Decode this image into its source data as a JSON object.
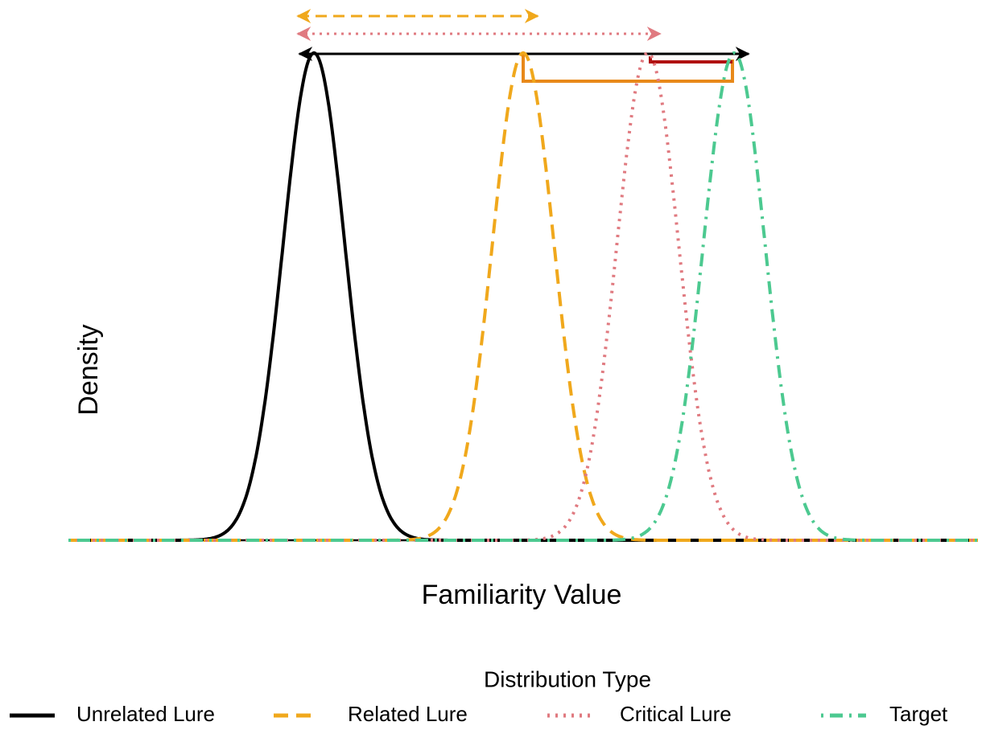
{
  "chart_data": {
    "type": "density",
    "x_label": "Familiarity Value",
    "y_label": "Density",
    "legend_title": "Distribution Type",
    "legend_position": "bottom",
    "xlim": [
      0,
      100
    ],
    "ylim": [
      0,
      0.1175
    ],
    "series": [
      {
        "name": "Unrelated Lure",
        "color": "#000000",
        "linetype": "solid",
        "mean": 27.0,
        "sd": 3.4
      },
      {
        "name": "Related Lure",
        "color": "#f0a81c",
        "linetype": "dashed",
        "mean": 50.0,
        "sd": 3.4
      },
      {
        "name": "Critical Lure",
        "color": "#e07a80",
        "linetype": "dotted",
        "mean": 63.7,
        "sd": 3.4
      },
      {
        "name": "Target",
        "color": "#4cc990",
        "linetype": "dotdash",
        "mean": 73.2,
        "sd": 3.4
      }
    ]
  }
}
